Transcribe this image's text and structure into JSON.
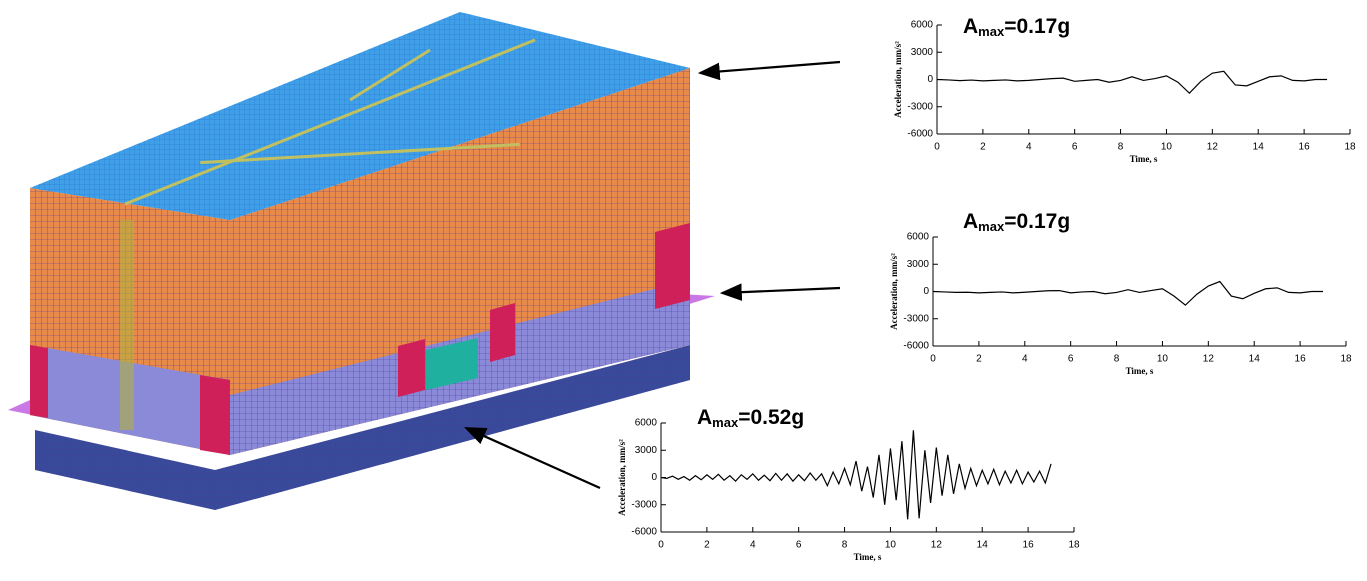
{
  "chart_data": [
    {
      "type": "line",
      "annotation": [
        "A",
        "max",
        "=0.17g"
      ],
      "xlabel": "Time, s",
      "ylabel": "Acceleration, mm/s²",
      "color": "#000000",
      "xlim": [
        0,
        18
      ],
      "ylim": [
        -6000,
        6000
      ],
      "xticks": [
        0,
        2,
        4,
        6,
        8,
        10,
        12,
        14,
        16,
        18
      ],
      "yticks": [
        -6000,
        -3000,
        0,
        3000,
        6000
      ],
      "x": [
        0,
        0.5,
        1,
        1.5,
        2,
        2.5,
        3,
        3.5,
        4,
        4.5,
        5,
        5.5,
        6,
        6.5,
        7,
        7.5,
        8,
        8.5,
        9,
        9.5,
        10,
        10.5,
        11,
        11.5,
        12,
        12.5,
        13,
        13.5,
        14,
        14.5,
        15,
        15.5,
        16,
        16.5,
        17
      ],
      "values": [
        0,
        -50,
        -120,
        -60,
        -150,
        -100,
        -50,
        -150,
        -100,
        0,
        100,
        150,
        -200,
        -100,
        0,
        -300,
        -100,
        300,
        -100,
        100,
        400,
        -300,
        -1500,
        -200,
        700,
        900,
        -600,
        -700,
        -200,
        300,
        400,
        -100,
        -150,
        0,
        0
      ]
    },
    {
      "type": "line",
      "annotation": [
        "A",
        "max",
        "=0.17g"
      ],
      "xlabel": "Time, s",
      "ylabel": "Acceleration, mm/s²",
      "color": "#000000",
      "xlim": [
        0,
        18
      ],
      "ylim": [
        -6000,
        6000
      ],
      "xticks": [
        0,
        2,
        4,
        6,
        8,
        10,
        12,
        14,
        16,
        18
      ],
      "yticks": [
        -6000,
        -3000,
        0,
        3000,
        6000
      ],
      "x": [
        0,
        0.5,
        1,
        1.5,
        2,
        2.5,
        3,
        3.5,
        4,
        4.5,
        5,
        5.5,
        6,
        6.5,
        7,
        7.5,
        8,
        8.5,
        9,
        9.5,
        10,
        10.5,
        11,
        11.5,
        12,
        12.5,
        13,
        13.5,
        14,
        14.5,
        15,
        15.5,
        16,
        16.5,
        17
      ],
      "values": [
        0,
        -50,
        -100,
        -80,
        -150,
        -100,
        -50,
        -150,
        -80,
        0,
        80,
        100,
        -150,
        -50,
        0,
        -250,
        -100,
        200,
        -100,
        100,
        300,
        -500,
        -1500,
        -300,
        600,
        1100,
        -500,
        -800,
        -200,
        300,
        400,
        -100,
        -150,
        0,
        0
      ]
    },
    {
      "type": "line",
      "annotation": [
        "A",
        "max",
        "=0.52g"
      ],
      "xlabel": "Time, s",
      "ylabel": "Acceleration, mm/s²",
      "color": "#000000",
      "xlim": [
        0,
        18
      ],
      "ylim": [
        -6000,
        6000
      ],
      "xticks": [
        0,
        2,
        4,
        6,
        8,
        10,
        12,
        14,
        16,
        18
      ],
      "yticks": [
        -6000,
        -3000,
        0,
        3000,
        6000
      ],
      "x": [
        0,
        0.25,
        0.5,
        0.75,
        1,
        1.25,
        1.5,
        1.75,
        2,
        2.25,
        2.5,
        2.75,
        3,
        3.25,
        3.5,
        3.75,
        4,
        4.25,
        4.5,
        4.75,
        5,
        5.25,
        5.5,
        5.75,
        6,
        6.25,
        6.5,
        6.75,
        7,
        7.25,
        7.5,
        7.75,
        8,
        8.25,
        8.5,
        8.75,
        9,
        9.25,
        9.5,
        9.75,
        10,
        10.25,
        10.5,
        10.75,
        11,
        11.25,
        11.5,
        11.75,
        12,
        12.25,
        12.5,
        12.75,
        13,
        13.25,
        13.5,
        13.75,
        14,
        14.25,
        14.5,
        14.75,
        15,
        15.25,
        15.5,
        15.75,
        16,
        16.25,
        16.5,
        16.75,
        17
      ],
      "values": [
        0,
        -100,
        150,
        -200,
        100,
        -300,
        200,
        -250,
        300,
        -200,
        350,
        -300,
        200,
        -400,
        300,
        -200,
        400,
        -300,
        250,
        -350,
        450,
        -300,
        400,
        -400,
        300,
        -350,
        500,
        -300,
        400,
        -900,
        600,
        -700,
        1000,
        -800,
        1800,
        -1500,
        1200,
        -2200,
        2500,
        -3000,
        3200,
        -2500,
        4000,
        -4600,
        5200,
        -4500,
        3000,
        -2800,
        3300,
        -2000,
        2500,
        -1800,
        1500,
        -1200,
        1000,
        -900,
        800,
        -700,
        900,
        -800,
        700,
        -600,
        800,
        -700,
        600,
        -500,
        700,
        -600,
        1500
      ]
    }
  ]
}
